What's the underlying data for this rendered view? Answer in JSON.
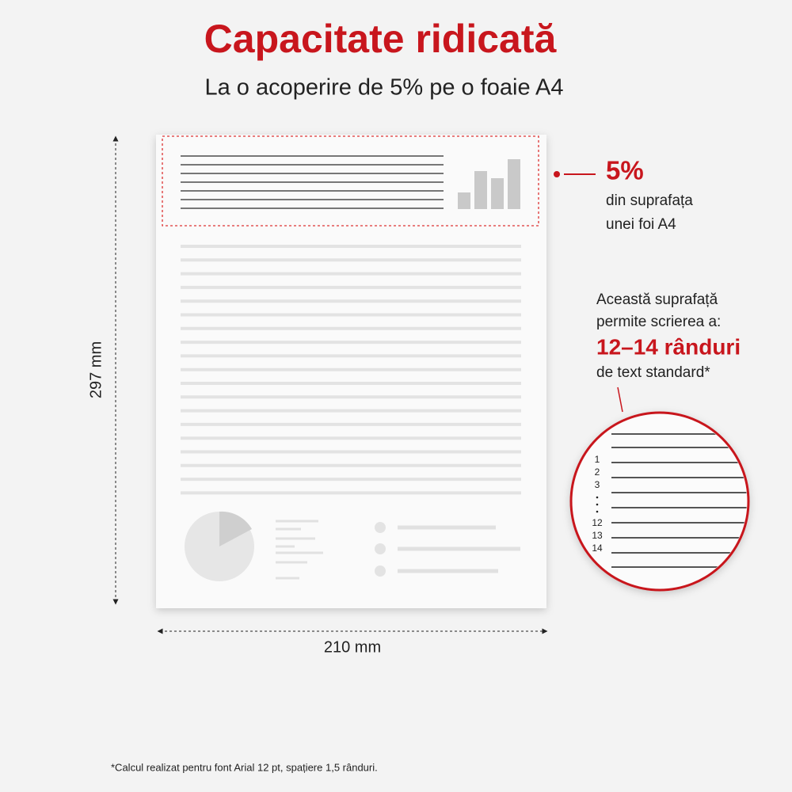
{
  "header": {
    "title": "Capacitate ridicată",
    "subtitle": "La o acoperire de 5% pe o foaie A4"
  },
  "dimensions": {
    "height": "297 mm",
    "width": "210 mm"
  },
  "callout_coverage": {
    "value": "5%",
    "lines": [
      "din suprafața",
      "unei foi A4"
    ]
  },
  "callout_lines": {
    "intro": [
      "Această suprafață",
      "permite scrierea a:"
    ],
    "highlight": "12–14 rânduri",
    "outro": "de text standard*"
  },
  "magnifier": {
    "numbers": [
      "1",
      "2",
      "3",
      "12",
      "13",
      "14"
    ]
  },
  "footnote": "*Calcul realizat pentru font Arial 12 pt, spațiere 1,5 rânduri."
}
